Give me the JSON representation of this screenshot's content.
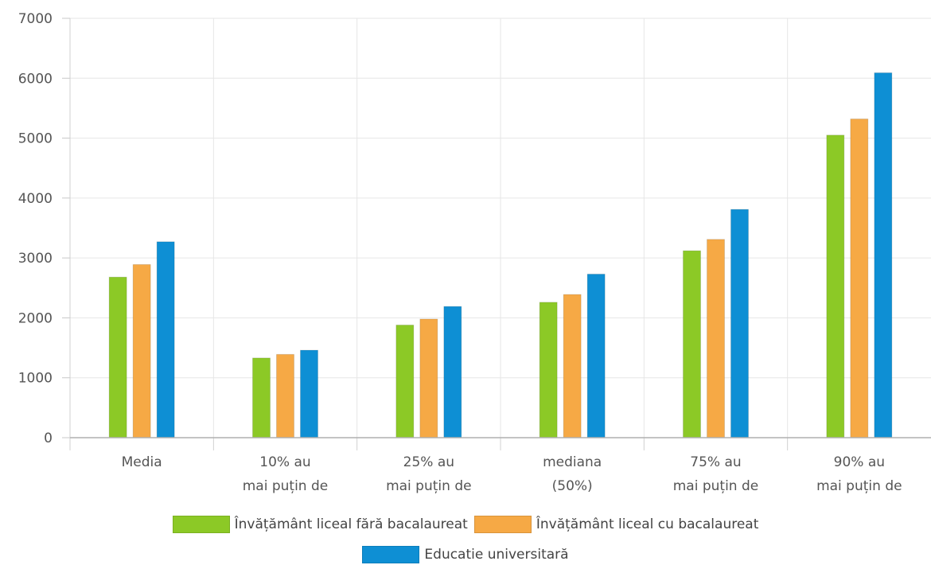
{
  "chart_data": {
    "type": "bar",
    "categories": [
      [
        "Media"
      ],
      [
        "10% au",
        "mai puțin de"
      ],
      [
        "25% au",
        "mai puțin de"
      ],
      [
        "mediana",
        "(50%)"
      ],
      [
        "75% au",
        "mai puțin de"
      ],
      [
        "90% au",
        "mai puțin de"
      ]
    ],
    "series": [
      {
        "name": "Învățământ liceal fără bacalaureat",
        "color": "#8cc926",
        "values": [
          2680,
          1330,
          1880,
          2260,
          3120,
          5050
        ]
      },
      {
        "name": "Învățământ liceal cu bacalaureat",
        "color": "#f6a945",
        "values": [
          2890,
          1390,
          1980,
          2390,
          3310,
          5320
        ]
      },
      {
        "name": "Educatie universitară",
        "color": "#0e8fd4",
        "values": [
          3270,
          1460,
          2190,
          2730,
          3810,
          6090
        ]
      }
    ],
    "yticks": [
      "0",
      "1000",
      "2000",
      "3000",
      "4000",
      "5000",
      "6000",
      "7000"
    ],
    "ylim": [
      0,
      7000
    ],
    "grid": true,
    "legend_position": "bottom"
  }
}
